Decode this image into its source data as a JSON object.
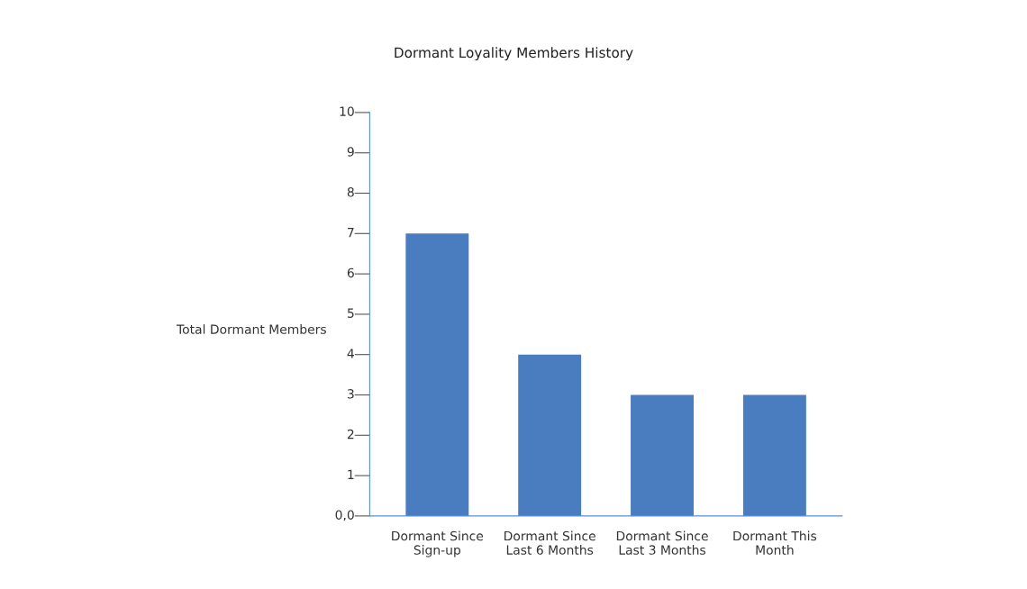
{
  "chart_data": {
    "type": "bar",
    "title": "Dormant Loyality Members History",
    "ylabel": "Total Dormant Members",
    "categories": [
      "Dormant Since\nSign-up",
      "Dormant Since\nLast 6 Months",
      "Dormant Since\nLast 3 Months",
      "Dormant This\nMonth"
    ],
    "values": [
      7,
      4,
      3,
      3
    ],
    "color": "#4a7dbf",
    "ylim": [
      0,
      10
    ],
    "yticks": [
      {
        "value": 0,
        "label": "0,0"
      },
      1,
      2,
      3,
      4,
      5,
      6,
      7,
      8,
      9,
      10
    ],
    "grid": false,
    "legend": false
  }
}
